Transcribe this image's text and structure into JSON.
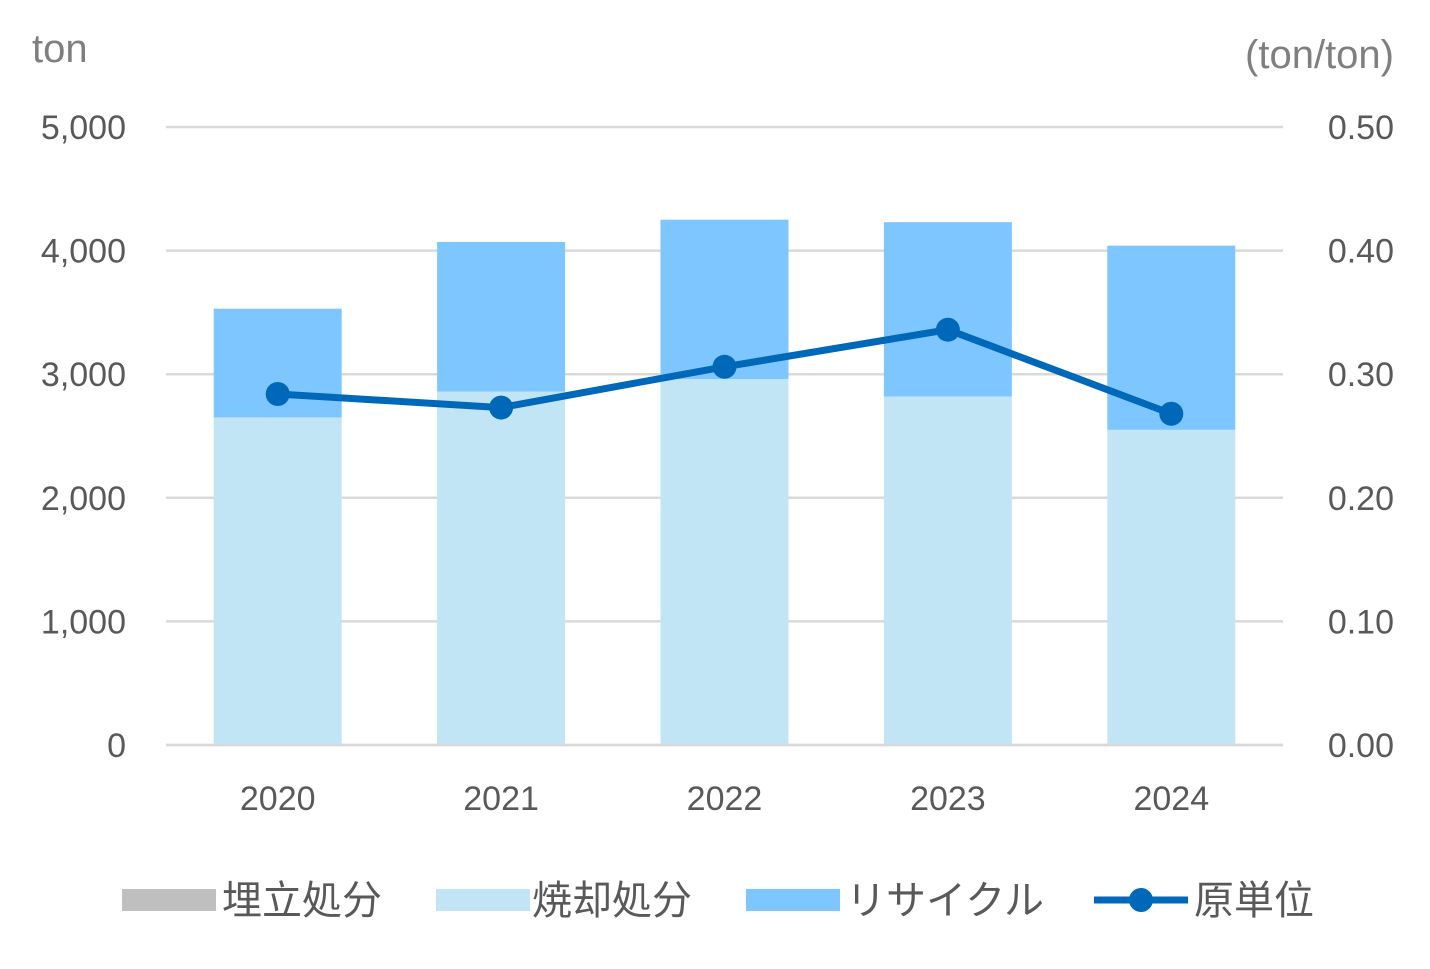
{
  "chart_data": {
    "type": "bar",
    "stacked": true,
    "categories": [
      "2020",
      "2021",
      "2022",
      "2023",
      "2024"
    ],
    "y_left": {
      "unit_label": "ton",
      "lim": [
        0,
        5000
      ],
      "ticks": [
        "0",
        "1,000",
        "2,000",
        "3,000",
        "4,000",
        "5,000"
      ]
    },
    "y_right": {
      "unit_label": "(ton/ton)",
      "lim": [
        0,
        0.5
      ],
      "ticks": [
        "0.00",
        "0.10",
        "0.20",
        "0.30",
        "0.40",
        "0.50"
      ]
    },
    "grid": true,
    "legend_position": "bottom",
    "series": [
      {
        "name": "埋立処分",
        "kind": "bar",
        "axis": "left",
        "color": "#bfbfbf",
        "values": [
          0,
          0,
          0,
          0,
          0
        ]
      },
      {
        "name": "焼却処分",
        "kind": "bar",
        "axis": "left",
        "color": "#c2e5f5",
        "values": [
          2650,
          2860,
          2960,
          2820,
          2550
        ]
      },
      {
        "name": "リサイクル",
        "kind": "bar",
        "axis": "left",
        "color": "#7ec6ff",
        "values": [
          880,
          1210,
          1290,
          1410,
          1490
        ]
      },
      {
        "name": "原単位",
        "kind": "line",
        "axis": "right",
        "color": "#0068b8",
        "values": [
          0.284,
          0.273,
          0.306,
          0.336,
          0.268
        ]
      }
    ]
  }
}
